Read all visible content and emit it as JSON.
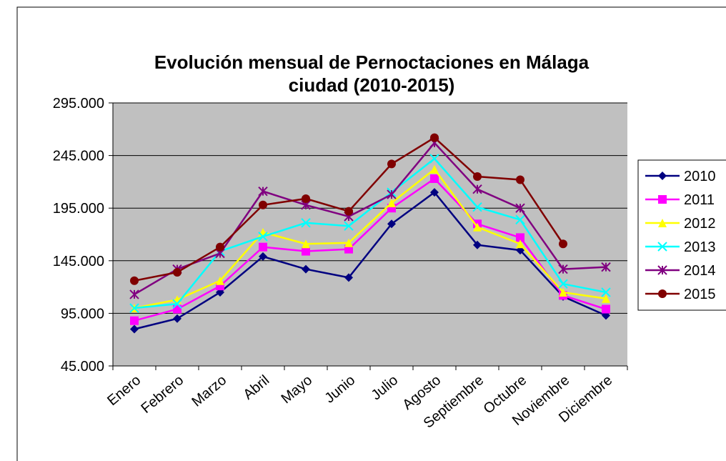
{
  "chart_data": {
    "type": "line",
    "title": "Evolución mensual de Pernoctaciones en Málaga ciudad (2010-2015)",
    "categories": [
      "Enero",
      "Febrero",
      "Marzo",
      "Abril",
      "Mayo",
      "Junio",
      "Julio",
      "Agosto",
      "Septiembre",
      "Octubre",
      "Noviembre",
      "Diciembre"
    ],
    "series": [
      {
        "name": "2010",
        "color": "#000080",
        "marker": "diamond",
        "values": [
          80000,
          90000,
          115000,
          149000,
          137000,
          129000,
          180000,
          210000,
          160000,
          155000,
          111000,
          93000
        ]
      },
      {
        "name": "2011",
        "color": "#ff00ff",
        "marker": "square",
        "values": [
          88000,
          99000,
          121000,
          158000,
          154000,
          156000,
          195000,
          223000,
          180000,
          167000,
          112000,
          99000
        ]
      },
      {
        "name": "2012",
        "color": "#ffff00",
        "marker": "triangle",
        "values": [
          100000,
          108000,
          126000,
          172000,
          161000,
          162000,
          200000,
          232000,
          177000,
          161000,
          115000,
          109000
        ]
      },
      {
        "name": "2013",
        "color": "#00ffff",
        "marker": "x",
        "values": [
          100000,
          104000,
          154000,
          168000,
          181000,
          178000,
          210000,
          242000,
          196000,
          184000,
          123000,
          115000
        ]
      },
      {
        "name": "2014",
        "color": "#800080",
        "marker": "star",
        "values": [
          113000,
          137000,
          152000,
          211000,
          198000,
          187000,
          208000,
          257000,
          213000,
          195000,
          137000,
          139000
        ]
      },
      {
        "name": "2015",
        "color": "#800000",
        "marker": "circle",
        "values": [
          126000,
          134000,
          158000,
          198000,
          204000,
          192000,
          237000,
          262000,
          225000,
          222000,
          161000,
          null
        ]
      }
    ],
    "ylim": [
      45000,
      295000
    ],
    "yticks": [
      {
        "value": 45000,
        "label": "45.000"
      },
      {
        "value": 95000,
        "label": "95.000"
      },
      {
        "value": 145000,
        "label": "145.000"
      },
      {
        "value": 195000,
        "label": "195.000"
      },
      {
        "value": 245000,
        "label": "245.000"
      },
      {
        "value": 295000,
        "label": "295.000"
      }
    ],
    "grid": true,
    "legend": "right"
  }
}
